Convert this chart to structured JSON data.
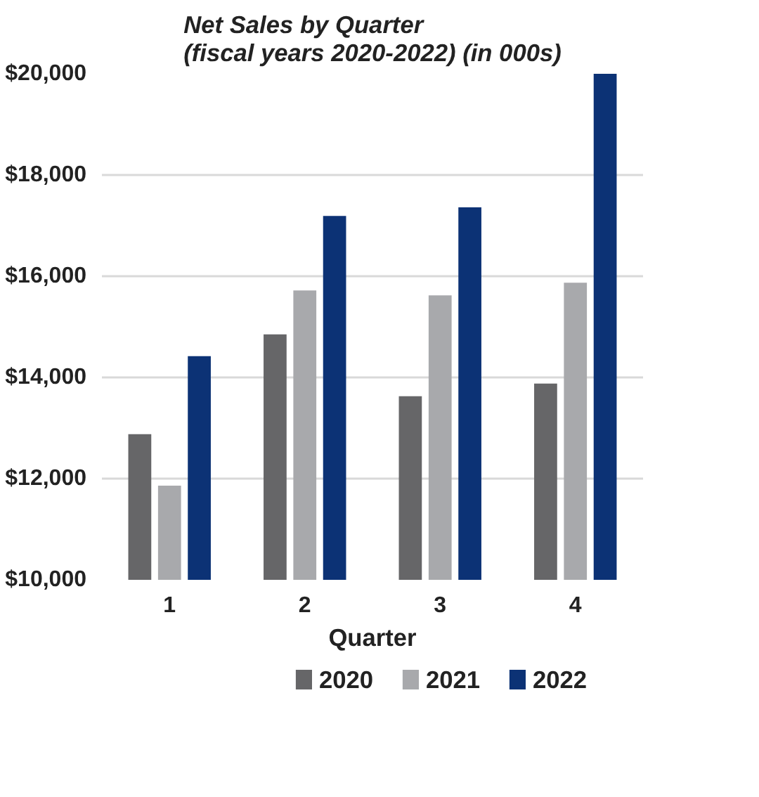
{
  "chart_data": {
    "type": "bar",
    "title": "Net Sales by Quarter\n(fiscal years 2020-2022) (in 000s)",
    "xlabel": "Quarter",
    "categories": [
      "1",
      "2",
      "3",
      "4"
    ],
    "series": [
      {
        "name": "2020",
        "color": "#666668",
        "values": [
          12880,
          14850,
          13630,
          13880
        ]
      },
      {
        "name": "2021",
        "color": "#a8a9ac",
        "values": [
          11860,
          15720,
          15620,
          15870
        ]
      },
      {
        "name": "2022",
        "color": "#0c3275",
        "values": [
          14420,
          17190,
          17360,
          20000
        ]
      }
    ],
    "ylim": [
      10000,
      20000
    ],
    "yticks": [
      {
        "value": 10000,
        "label": "$10,000"
      },
      {
        "value": 12000,
        "label": "$12,000"
      },
      {
        "value": 14000,
        "label": "$14,000"
      },
      {
        "value": 16000,
        "label": "$16,000"
      },
      {
        "value": 18000,
        "label": "$18,000"
      },
      {
        "value": 20000,
        "label": "$20,000"
      }
    ],
    "grid": "y",
    "legend": "bottom"
  }
}
